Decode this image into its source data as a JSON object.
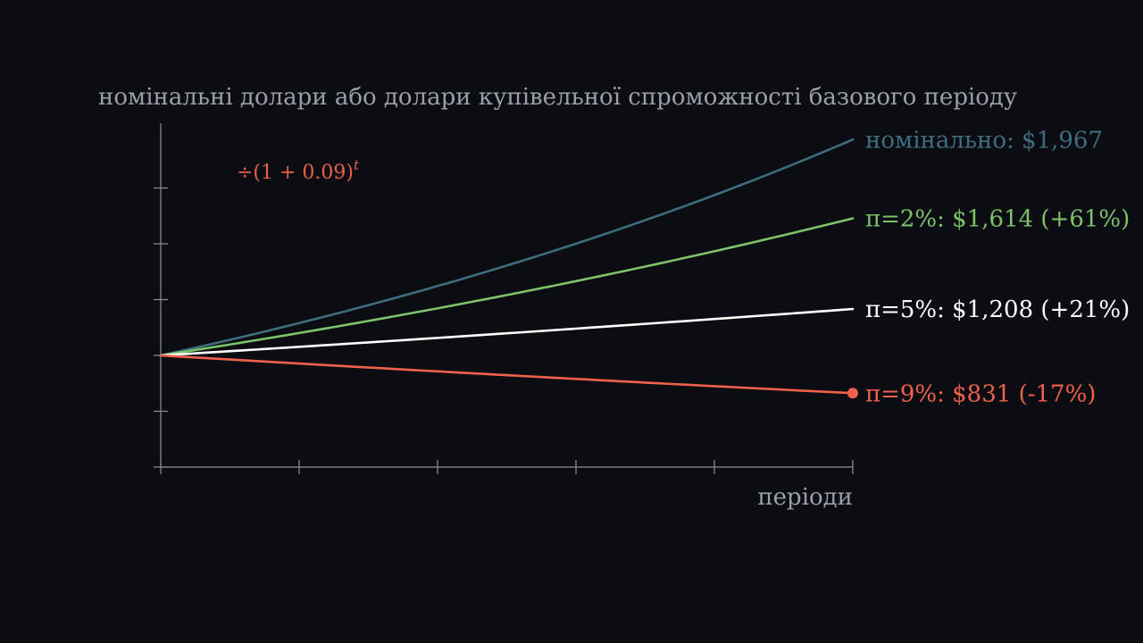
{
  "chart_data": {
    "type": "line",
    "ylabel": "номінальні долари або долари купівельної спроможності базового періоду",
    "xlabel": "періоди",
    "annotation": {
      "text": "÷(1 + 0.09)",
      "exponent": "t",
      "color": "#e8604c"
    },
    "x_range": [
      0,
      5
    ],
    "y_range": [
      500,
      2000
    ],
    "x_ticks": [
      0,
      1,
      2,
      3,
      4,
      5
    ],
    "y_ticks": [
      500,
      750,
      1000,
      1250,
      1500,
      1750
    ],
    "grid": false,
    "series": [
      {
        "label": "номінально: $1,967",
        "color": "#3e6e7e",
        "start": 1000,
        "end": 1967
      },
      {
        "label": "π=2%: $1,614 (+61%)",
        "color": "#7cc36a",
        "start": 1000,
        "end": 1614
      },
      {
        "label": "π=5%: $1,208 (+21%)",
        "color": "#ffffff",
        "start": 1000,
        "end": 1208
      },
      {
        "label": "π=9%: $831 (-17%)",
        "color": "#f0614c",
        "start": 1000,
        "end": 831,
        "end_marker": true
      }
    ]
  }
}
